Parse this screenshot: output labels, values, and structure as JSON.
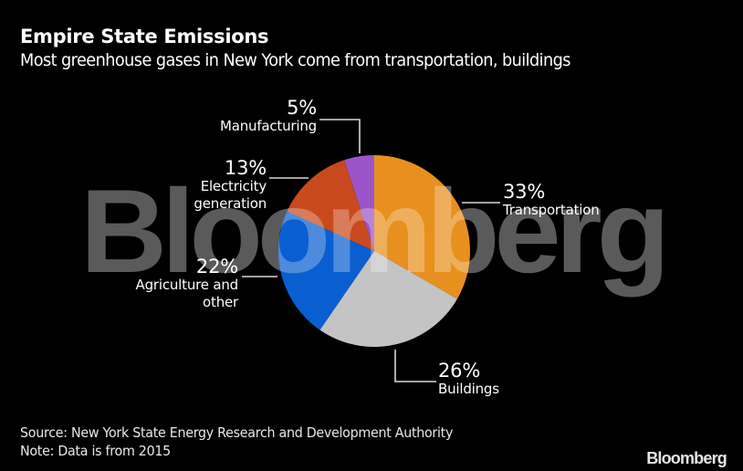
{
  "header": {
    "title": "Empire State Emissions",
    "subtitle": "Most greenhouse gases in New York come from transportation, buildings"
  },
  "watermark": "Bloomberg",
  "labels": {
    "manufacturing": {
      "pct": "5%",
      "name": "Manufacturing"
    },
    "electricity": {
      "pct": "13%",
      "name_line1": "Electricity",
      "name_line2": "generation"
    },
    "agriculture": {
      "pct": "22%",
      "name_line1": "Agriculture and",
      "name_line2": "other"
    },
    "transportation": {
      "pct": "33%",
      "name": "Transportation"
    },
    "buildings": {
      "pct": "26%",
      "name": "Buildings"
    }
  },
  "footer": {
    "source": "Source: New York State Energy Research and Development Authority",
    "note": "Note: Data is from 2015"
  },
  "logo": "Bloomberg",
  "colors": {
    "transportation": "#e8901f",
    "buildings": "#c4c4c4",
    "agriculture": "#0a5fd0",
    "electricity": "#c94a1e",
    "manufacturing": "#9b55c8",
    "background": "#000000"
  },
  "chart_data": {
    "type": "pie",
    "title": "Empire State Emissions",
    "subtitle": "Most greenhouse gases in New York come from transportation, buildings",
    "categories": [
      "Transportation",
      "Buildings",
      "Agriculture and other",
      "Electricity generation",
      "Manufacturing"
    ],
    "values": [
      33,
      26,
      22,
      13,
      5
    ],
    "unit": "%",
    "start_angle": "12 o'clock, clockwise",
    "colors": [
      "#e8901f",
      "#c4c4c4",
      "#0a5fd0",
      "#c94a1e",
      "#9b55c8"
    ],
    "source": "New York State Energy Research and Development Authority",
    "note": "Data is from 2015"
  }
}
